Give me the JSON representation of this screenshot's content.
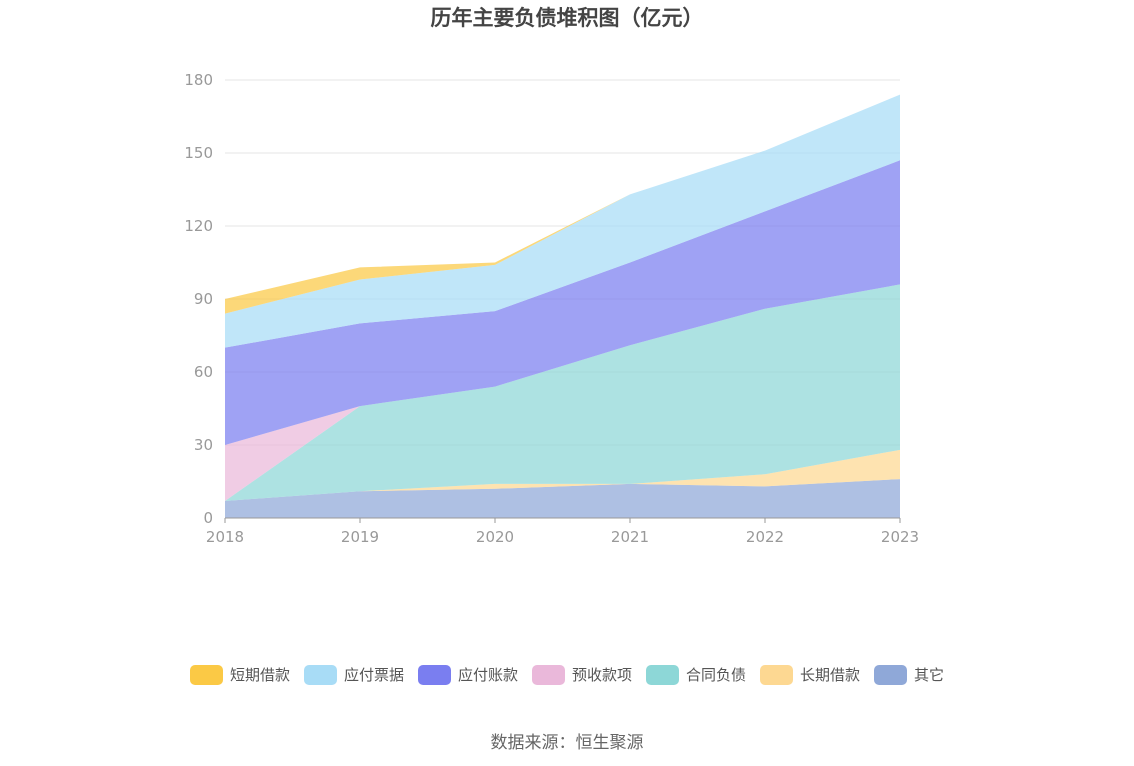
{
  "chart_data": {
    "type": "area",
    "title": "历年主要负债堆积图（亿元）",
    "categories": [
      "2018",
      "2019",
      "2020",
      "2021",
      "2022",
      "2023"
    ],
    "ylim": [
      0,
      180
    ],
    "yticks": [
      0,
      30,
      60,
      90,
      120,
      150,
      180
    ],
    "grid": true,
    "legend_position": "bottom",
    "stacked": true,
    "series": [
      {
        "name": "其它",
        "color": "#8fa8d8",
        "values": [
          7,
          11,
          12,
          14,
          13,
          16
        ]
      },
      {
        "name": "长期借款",
        "color": "#fdd892",
        "values": [
          0,
          0,
          2,
          0,
          5,
          12
        ]
      },
      {
        "name": "合同负债",
        "color": "#8dd7d7",
        "values": [
          0,
          35,
          40,
          57,
          68,
          68
        ]
      },
      {
        "name": "预收款项",
        "color": "#eab8da",
        "values": [
          23,
          0,
          0,
          0,
          0,
          0
        ]
      },
      {
        "name": "应付账款",
        "color": "#7a7ef0",
        "values": [
          40,
          34,
          31,
          34,
          40,
          51
        ]
      },
      {
        "name": "应付票据",
        "color": "#a8dcf6",
        "values": [
          14,
          18,
          19,
          28,
          25,
          27
        ]
      },
      {
        "name": "短期借款",
        "color": "#fbc945",
        "values": [
          6,
          5,
          1,
          0,
          0,
          0
        ]
      }
    ],
    "legend_order": [
      "短期借款",
      "应付票据",
      "应付账款",
      "预收款项",
      "合同负债",
      "长期借款",
      "其它"
    ]
  },
  "source": "数据来源：恒生聚源"
}
